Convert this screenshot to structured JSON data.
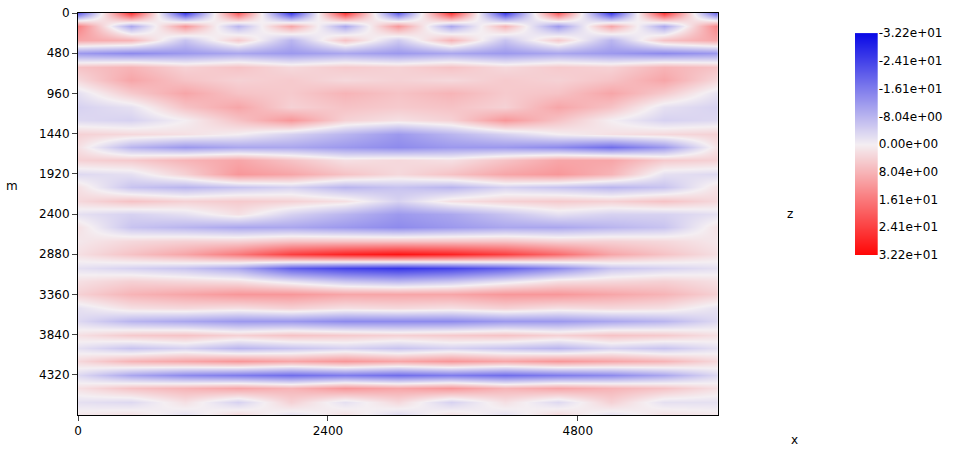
{
  "chart_data": {
    "type": "heatmap",
    "x_label": "x",
    "y_label": "m",
    "y2_label": "z",
    "x": [
      0,
      512,
      1024,
      1536,
      2048,
      2560,
      3072,
      3584,
      4096,
      4608,
      5120,
      5632,
      6144
    ],
    "y": [
      0,
      160,
      320,
      480,
      640,
      800,
      960,
      1120,
      1280,
      1440,
      1600,
      1760,
      1920,
      2080,
      2240,
      2400,
      2560,
      2720,
      2880,
      3040,
      3200,
      3360,
      3520,
      3680,
      3840,
      4000,
      4160,
      4320,
      4480,
      4640,
      4800
    ],
    "z": [
      [
        -20,
        25,
        -25,
        20,
        -25,
        25,
        -20,
        25,
        -25,
        20,
        -25,
        25,
        -20
      ],
      [
        15,
        -10,
        12,
        -8,
        10,
        -10,
        12,
        -10,
        8,
        -12,
        10,
        -10,
        15
      ],
      [
        10,
        8,
        -6,
        5,
        -8,
        6,
        -5,
        8,
        -6,
        5,
        -8,
        6,
        10
      ],
      [
        -12,
        -14,
        -12,
        -10,
        -12,
        -10,
        -12,
        -10,
        -12,
        -10,
        -12,
        -14,
        -12
      ],
      [
        6,
        8,
        4,
        6,
        3,
        5,
        4,
        6,
        3,
        5,
        4,
        8,
        6
      ],
      [
        3,
        10,
        6,
        4,
        5,
        3,
        4,
        3,
        5,
        4,
        6,
        10,
        3
      ],
      [
        -2,
        5,
        10,
        6,
        5,
        8,
        6,
        8,
        5,
        6,
        10,
        5,
        -2
      ],
      [
        -4,
        -2,
        6,
        10,
        4,
        6,
        5,
        6,
        4,
        10,
        6,
        -2,
        -4
      ],
      [
        -3,
        -4,
        0,
        6,
        12,
        4,
        2,
        4,
        12,
        6,
        0,
        -4,
        -3
      ],
      [
        4,
        3,
        2,
        0,
        -4,
        -8,
        -12,
        -8,
        -4,
        0,
        2,
        3,
        4
      ],
      [
        2,
        -8,
        -12,
        -10,
        -10,
        -12,
        -14,
        -12,
        -12,
        -14,
        -18,
        -12,
        2
      ],
      [
        4,
        5,
        8,
        10,
        6,
        2,
        3,
        2,
        6,
        10,
        10,
        5,
        4
      ],
      [
        -3,
        -2,
        4,
        12,
        10,
        6,
        3,
        6,
        10,
        12,
        8,
        -2,
        -3
      ],
      [
        2,
        -6,
        -8,
        -6,
        -4,
        -8,
        -6,
        -8,
        -4,
        -6,
        -8,
        -6,
        2
      ],
      [
        3,
        6,
        4,
        5,
        4,
        2,
        -4,
        2,
        4,
        5,
        4,
        6,
        3
      ],
      [
        -2,
        -4,
        -2,
        2,
        -4,
        -8,
        -12,
        -10,
        -6,
        -2,
        -4,
        -4,
        -2
      ],
      [
        2,
        -6,
        -8,
        -10,
        -10,
        -12,
        -14,
        -12,
        -10,
        -10,
        -8,
        -6,
        2
      ],
      [
        1,
        3,
        4,
        4,
        6,
        6,
        6,
        6,
        6,
        4,
        4,
        3,
        1
      ],
      [
        2,
        6,
        10,
        16,
        24,
        28,
        30,
        28,
        24,
        18,
        10,
        6,
        2
      ],
      [
        -2,
        -4,
        -6,
        -10,
        -20,
        -24,
        -26,
        -24,
        -20,
        -14,
        -6,
        -4,
        -2
      ],
      [
        2,
        4,
        3,
        2,
        -2,
        -6,
        -8,
        -6,
        -2,
        2,
        3,
        4,
        2
      ],
      [
        4,
        8,
        10,
        12,
        12,
        10,
        10,
        10,
        12,
        12,
        10,
        8,
        4
      ],
      [
        -2,
        2,
        3,
        2,
        4,
        2,
        3,
        2,
        4,
        2,
        3,
        2,
        -2
      ],
      [
        -3,
        -8,
        -10,
        -12,
        -12,
        -14,
        -14,
        -14,
        -12,
        -12,
        -10,
        -8,
        -3
      ],
      [
        2,
        5,
        6,
        4,
        6,
        5,
        4,
        5,
        6,
        4,
        6,
        5,
        2
      ],
      [
        -2,
        -6,
        -4,
        -8,
        -6,
        -4,
        -6,
        -4,
        -6,
        -8,
        -4,
        -6,
        -2
      ],
      [
        3,
        8,
        10,
        12,
        10,
        12,
        10,
        12,
        10,
        12,
        10,
        8,
        3
      ],
      [
        -3,
        -10,
        -14,
        -16,
        -18,
        -16,
        -18,
        -16,
        -18,
        -16,
        -14,
        -10,
        -3
      ],
      [
        2,
        6,
        8,
        10,
        8,
        12,
        10,
        12,
        8,
        10,
        8,
        6,
        2
      ],
      [
        -2,
        -3,
        2,
        -4,
        4,
        -2,
        3,
        -4,
        2,
        -3,
        4,
        -2,
        -2
      ],
      [
        1,
        2,
        -2,
        3,
        -2,
        2,
        -3,
        2,
        -2,
        3,
        -2,
        2,
        1
      ]
    ],
    "xlim": [
      0,
      6144
    ],
    "ylim": [
      4800,
      0
    ],
    "xticks": [
      0,
      2400,
      4800
    ],
    "yticks": [
      0,
      480,
      960,
      1440,
      1920,
      2400,
      2880,
      3360,
      3840,
      4320
    ],
    "colors": [
      "#0a0ae6",
      "#f4eef2",
      "#ff0505"
    ],
    "colorbar": {
      "range": [
        32.2,
        -32.2
      ],
      "ticks": [
        {
          "value": -32.2,
          "label": "-3.22e+01"
        },
        {
          "value": -24.1,
          "label": "-2.41e+01"
        },
        {
          "value": -16.1,
          "label": "-1.61e+01"
        },
        {
          "value": -8.04,
          "label": "-8.04e+00"
        },
        {
          "value": 0,
          "label": "0.00e+00"
        },
        {
          "value": 8.04,
          "label": "8.04e+00"
        },
        {
          "value": 16.1,
          "label": "1.61e+01"
        },
        {
          "value": 24.1,
          "label": "2.41e+01"
        },
        {
          "value": 32.2,
          "label": "3.22e+01"
        }
      ]
    }
  }
}
